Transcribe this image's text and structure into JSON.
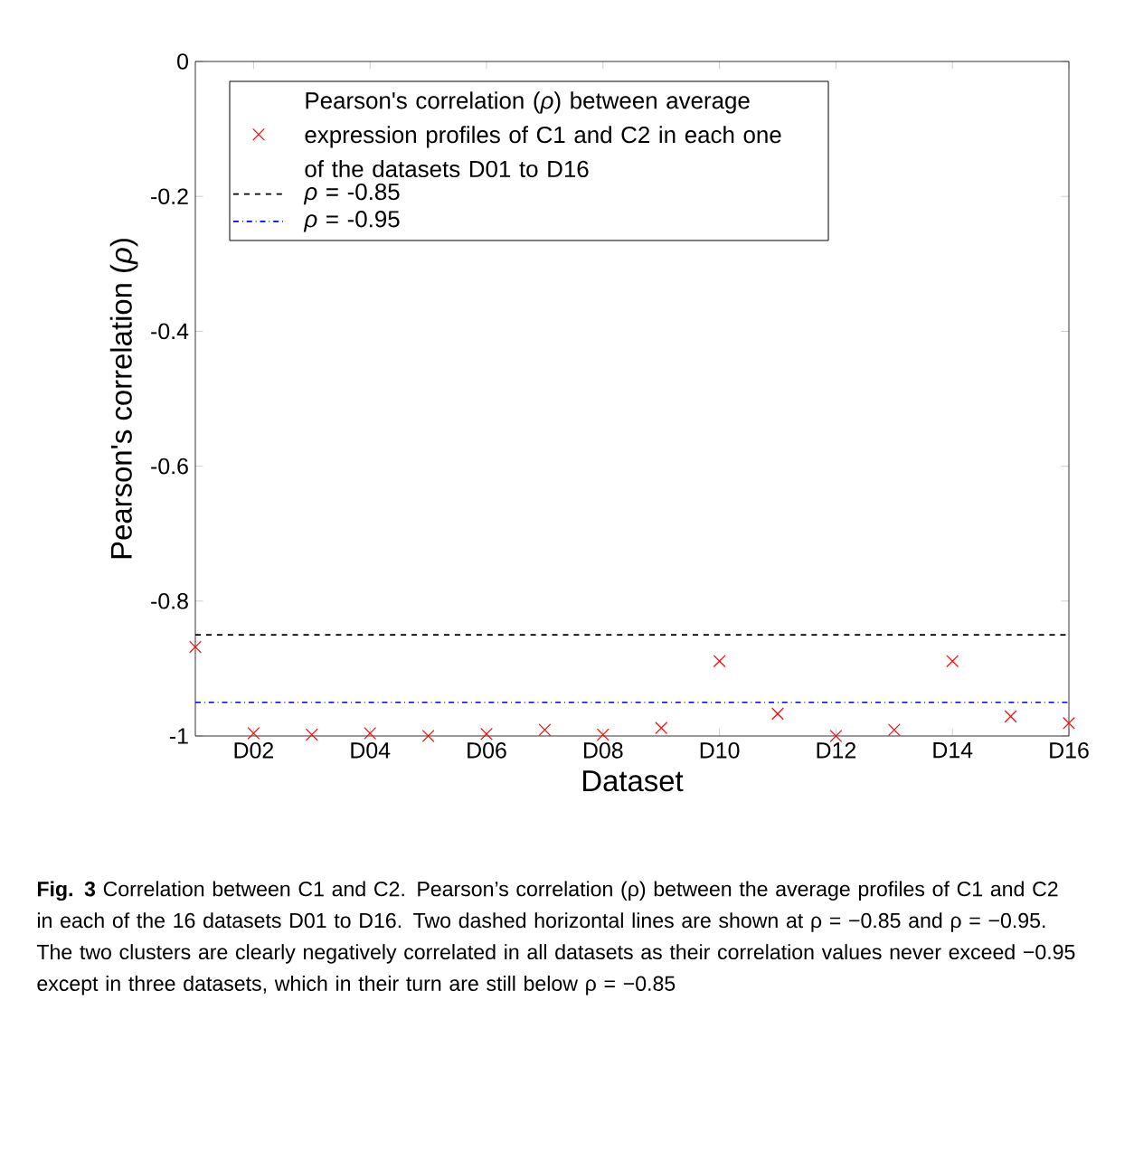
{
  "chart_data": {
    "type": "scatter",
    "xlabel": "Dataset",
    "ylabel": "Pearson's correlation (*ρ*)",
    "categories": [
      null,
      "D02",
      null,
      "D04",
      null,
      "D06",
      null,
      "D08",
      null,
      "D10",
      null,
      "D12",
      null,
      "D14",
      null,
      "D16"
    ],
    "series": [
      {
        "name": "Pearson's correlation (*ρ*) between average expression profiles of C1 and C2 in each one of the datasets D01 to D16",
        "color": "#ff0000",
        "values": [
          -0.868,
          -0.996,
          -0.998,
          -0.996,
          -1.0,
          -0.997,
          -0.991,
          -0.998,
          -0.988,
          -0.889,
          -0.967,
          -1.0,
          -0.991,
          -0.889,
          -0.971,
          -0.981
        ]
      }
    ],
    "marker": "cross",
    "ylim": [
      -1,
      0
    ],
    "yticks": [
      -1,
      -0.8,
      -0.6,
      -0.4,
      -0.2,
      0
    ],
    "legend": "top left",
    "ref_lines": [
      {
        "axis": "y",
        "value": -0.85,
        "label": "*ρ* = -0.85",
        "color": "#000000",
        "line_style": "dashed"
      },
      {
        "axis": "y",
        "value": -0.95,
        "label": "*ρ* = -0.95",
        "color": "#0000ff",
        "line_style": "dashdot"
      }
    ],
    "annotations": [
      "**Fig. 3** Correlation between C1 and C2. Pearson’s correlation (ρ) between the average profiles of C1 and C2 in each of the 16 datasets D01 to D16. Two dashed horizontal lines are shown at ρ = −0.85 and ρ = −0.95. The two clusters are clearly negatively correlated in all datasets as their correlation values never exceed −0.95 except in three datasets, which in their turn are still below ρ = −0.85"
    ]
  }
}
